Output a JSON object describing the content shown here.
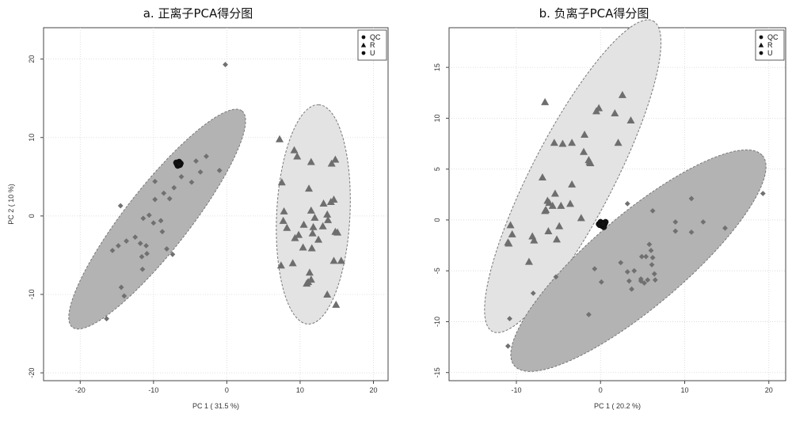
{
  "chart_data": [
    {
      "type": "scatter",
      "title": "a. 正离子PCA得分图",
      "xlabel": "PC 1 ( 31.5 %)",
      "ylabel": "PC 2 ( 10 %)",
      "xlim": [
        -25,
        22
      ],
      "ylim": [
        -21,
        24
      ],
      "xticks": [
        -20,
        -10,
        0,
        10,
        20
      ],
      "yticks": [
        -20,
        -10,
        0,
        10,
        20
      ],
      "grid": true,
      "legend": {
        "position": "top-right",
        "entries": [
          "QC",
          "R",
          "U"
        ]
      },
      "ellipses": [
        {
          "group": "U",
          "center": [
            -9.5,
            -0.4
          ],
          "rx": 18.0,
          "ry": 4.2,
          "angle_deg": 50,
          "fill": "#b3b3b3"
        },
        {
          "group": "R",
          "center": [
            11.8,
            0.2
          ],
          "rx": 14.0,
          "ry": 5.0,
          "angle_deg": 87,
          "fill": "#e3e3e3"
        }
      ],
      "series": [
        {
          "name": "QC",
          "marker": "circle",
          "points": [
            [
              -6.6,
              6.8
            ],
            [
              -6.4,
              6.5
            ],
            [
              -6.8,
              6.6
            ],
            [
              -6.5,
              6.9
            ],
            [
              -6.7,
              6.4
            ],
            [
              -6.3,
              6.7
            ],
            [
              -6.9,
              6.8
            ],
            [
              -6.5,
              6.6
            ]
          ]
        },
        {
          "name": "R",
          "marker": "triangle",
          "points": [
            [
              7.2,
              9.8
            ],
            [
              9.2,
              8.4
            ],
            [
              9.6,
              7.6
            ],
            [
              14.8,
              7.2
            ],
            [
              14.3,
              6.7
            ],
            [
              11.5,
              6.9
            ],
            [
              7.5,
              4.3
            ],
            [
              11.2,
              3.5
            ],
            [
              14.6,
              2.1
            ],
            [
              14.2,
              1.8
            ],
            [
              13.2,
              1.6
            ],
            [
              11.5,
              0.7
            ],
            [
              7.8,
              0.6
            ],
            [
              13.7,
              0.2
            ],
            [
              7.7,
              -0.6
            ],
            [
              12.0,
              -0.2
            ],
            [
              13.8,
              -0.5
            ],
            [
              8.2,
              -1.5
            ],
            [
              10.5,
              -1.1
            ],
            [
              11.8,
              -1.4
            ],
            [
              13.1,
              -1.3
            ],
            [
              9.8,
              -2.4
            ],
            [
              11.7,
              -2.2
            ],
            [
              14.8,
              -2.0
            ],
            [
              15.1,
              -2.1
            ],
            [
              9.3,
              -2.8
            ],
            [
              12.5,
              -3.0
            ],
            [
              10.4,
              -4.0
            ],
            [
              11.6,
              -4.1
            ],
            [
              14.6,
              -5.7
            ],
            [
              15.6,
              -5.7
            ],
            [
              9.0,
              -6.0
            ],
            [
              7.4,
              -6.3
            ],
            [
              11.3,
              -7.2
            ],
            [
              11.5,
              -8.1
            ],
            [
              11.1,
              -8.4
            ],
            [
              10.9,
              -8.6
            ],
            [
              13.7,
              -10.0
            ],
            [
              14.9,
              -11.3
            ]
          ]
        },
        {
          "name": "U",
          "marker": "diamond",
          "points": [
            [
              -0.2,
              19.3
            ],
            [
              -2.8,
              7.6
            ],
            [
              -4.2,
              7.0
            ],
            [
              -1.0,
              5.8
            ],
            [
              -6.2,
              5.0
            ],
            [
              -3.6,
              5.6
            ],
            [
              -4.8,
              4.3
            ],
            [
              -9.8,
              4.4
            ],
            [
              -7.2,
              3.6
            ],
            [
              -8.6,
              2.9
            ],
            [
              -7.8,
              2.2
            ],
            [
              -9.8,
              2.1
            ],
            [
              -14.5,
              1.3
            ],
            [
              -10.6,
              0.1
            ],
            [
              -11.4,
              -0.3
            ],
            [
              -9.0,
              -0.6
            ],
            [
              -10.0,
              -0.9
            ],
            [
              -12.5,
              -2.7
            ],
            [
              -8.8,
              -2.0
            ],
            [
              -13.7,
              -3.2
            ],
            [
              -11.8,
              -3.5
            ],
            [
              -11.0,
              -3.8
            ],
            [
              -14.8,
              -3.8
            ],
            [
              -15.6,
              -4.4
            ],
            [
              -8.2,
              -4.2
            ],
            [
              -10.9,
              -4.8
            ],
            [
              -7.4,
              -4.9
            ],
            [
              -11.6,
              -5.2
            ],
            [
              -11.5,
              -6.8
            ],
            [
              -14.4,
              -9.1
            ],
            [
              -14.0,
              -10.2
            ],
            [
              -16.4,
              -13.1
            ]
          ]
        }
      ]
    },
    {
      "type": "scatter",
      "title": "b. 负离子PCA得分图",
      "xlabel": "PC 1 ( 20.2 %)",
      "ylabel": "",
      "xlim": [
        -18,
        22
      ],
      "ylim": [
        -15.8,
        18.9
      ],
      "xticks": [
        -10,
        0,
        10,
        20
      ],
      "yticks": [
        -15,
        -10,
        -5,
        0,
        5,
        10,
        15
      ],
      "grid": true,
      "legend": {
        "position": "top-right",
        "entries": [
          "QC",
          "R",
          "U"
        ]
      },
      "ellipses": [
        {
          "group": "R",
          "center": [
            -3.3,
            4.3
          ],
          "rx": 18.0,
          "ry": 4.6,
          "angle_deg": 58,
          "fill": "#e3e3e3"
        },
        {
          "group": "U",
          "center": [
            4.5,
            -4.0
          ],
          "rx": 18.0,
          "ry": 4.8,
          "angle_deg": 35,
          "fill": "#b3b3b3"
        }
      ],
      "series": [
        {
          "name": "QC",
          "marker": "circle",
          "points": [
            [
              0.1,
              -0.5
            ],
            [
              0.3,
              -0.3
            ],
            [
              -0.2,
              -0.4
            ],
            [
              0.2,
              -0.6
            ],
            [
              0.5,
              -0.4
            ],
            [
              0.0,
              -0.2
            ],
            [
              0.4,
              -0.7
            ],
            [
              -0.1,
              -0.5
            ],
            [
              0.6,
              -0.2
            ],
            [
              0.3,
              -0.4
            ]
          ]
        },
        {
          "name": "R",
          "marker": "triangle",
          "points": [
            [
              -6.6,
              11.6
            ],
            [
              2.6,
              12.3
            ],
            [
              -0.2,
              11.0
            ],
            [
              -0.5,
              10.7
            ],
            [
              1.7,
              10.5
            ],
            [
              3.6,
              9.8
            ],
            [
              -5.5,
              7.6
            ],
            [
              -4.5,
              7.5
            ],
            [
              -3.4,
              7.6
            ],
            [
              -1.9,
              8.4
            ],
            [
              2.1,
              7.6
            ],
            [
              -2.0,
              6.7
            ],
            [
              -1.4,
              5.9
            ],
            [
              -1.3,
              5.7
            ],
            [
              -1.2,
              5.6
            ],
            [
              -6.9,
              4.2
            ],
            [
              -3.4,
              3.5
            ],
            [
              -5.4,
              2.6
            ],
            [
              -6.3,
              1.9
            ],
            [
              -6.1,
              1.7
            ],
            [
              -3.6,
              1.6
            ],
            [
              -5.7,
              1.4
            ],
            [
              -4.7,
              1.4
            ],
            [
              -6.5,
              1.0
            ],
            [
              -6.6,
              0.9
            ],
            [
              -2.3,
              0.2
            ],
            [
              -4.9,
              -0.6
            ],
            [
              -10.7,
              -0.5
            ],
            [
              -6.2,
              -1.1
            ],
            [
              -8.1,
              -1.6
            ],
            [
              -10.5,
              -1.4
            ],
            [
              -7.9,
              -2.0
            ],
            [
              -5.2,
              -1.9
            ],
            [
              -11.0,
              -2.2
            ],
            [
              -10.9,
              -2.3
            ],
            [
              -8.5,
              -4.1
            ]
          ]
        },
        {
          "name": "U",
          "marker": "diamond",
          "points": [
            [
              3.2,
              1.6
            ],
            [
              19.3,
              2.6
            ],
            [
              10.8,
              2.1
            ],
            [
              6.2,
              0.9
            ],
            [
              8.9,
              -0.2
            ],
            [
              12.2,
              -0.2
            ],
            [
              -10.8,
              -9.7
            ],
            [
              -11.0,
              -12.4
            ],
            [
              14.8,
              -0.8
            ],
            [
              8.9,
              -1.1
            ],
            [
              10.8,
              -1.2
            ],
            [
              5.8,
              -2.4
            ],
            [
              6.0,
              -3.0
            ],
            [
              5.4,
              -3.6
            ],
            [
              6.2,
              -3.7
            ],
            [
              4.9,
              -3.6
            ],
            [
              2.4,
              -4.2
            ],
            [
              6.1,
              -4.4
            ],
            [
              -0.7,
              -4.8
            ],
            [
              3.2,
              -5.1
            ],
            [
              4.0,
              -5.0
            ],
            [
              6.4,
              -5.3
            ],
            [
              -5.3,
              -5.6
            ],
            [
              4.8,
              -5.8
            ],
            [
              5.6,
              -5.9
            ],
            [
              6.5,
              -5.9
            ],
            [
              3.4,
              -6.0
            ],
            [
              4.8,
              -6.0
            ],
            [
              0.1,
              -6.1
            ],
            [
              5.2,
              -6.2
            ],
            [
              3.7,
              -6.8
            ],
            [
              -8.0,
              -7.2
            ],
            [
              -1.4,
              -9.3
            ]
          ]
        }
      ]
    }
  ]
}
